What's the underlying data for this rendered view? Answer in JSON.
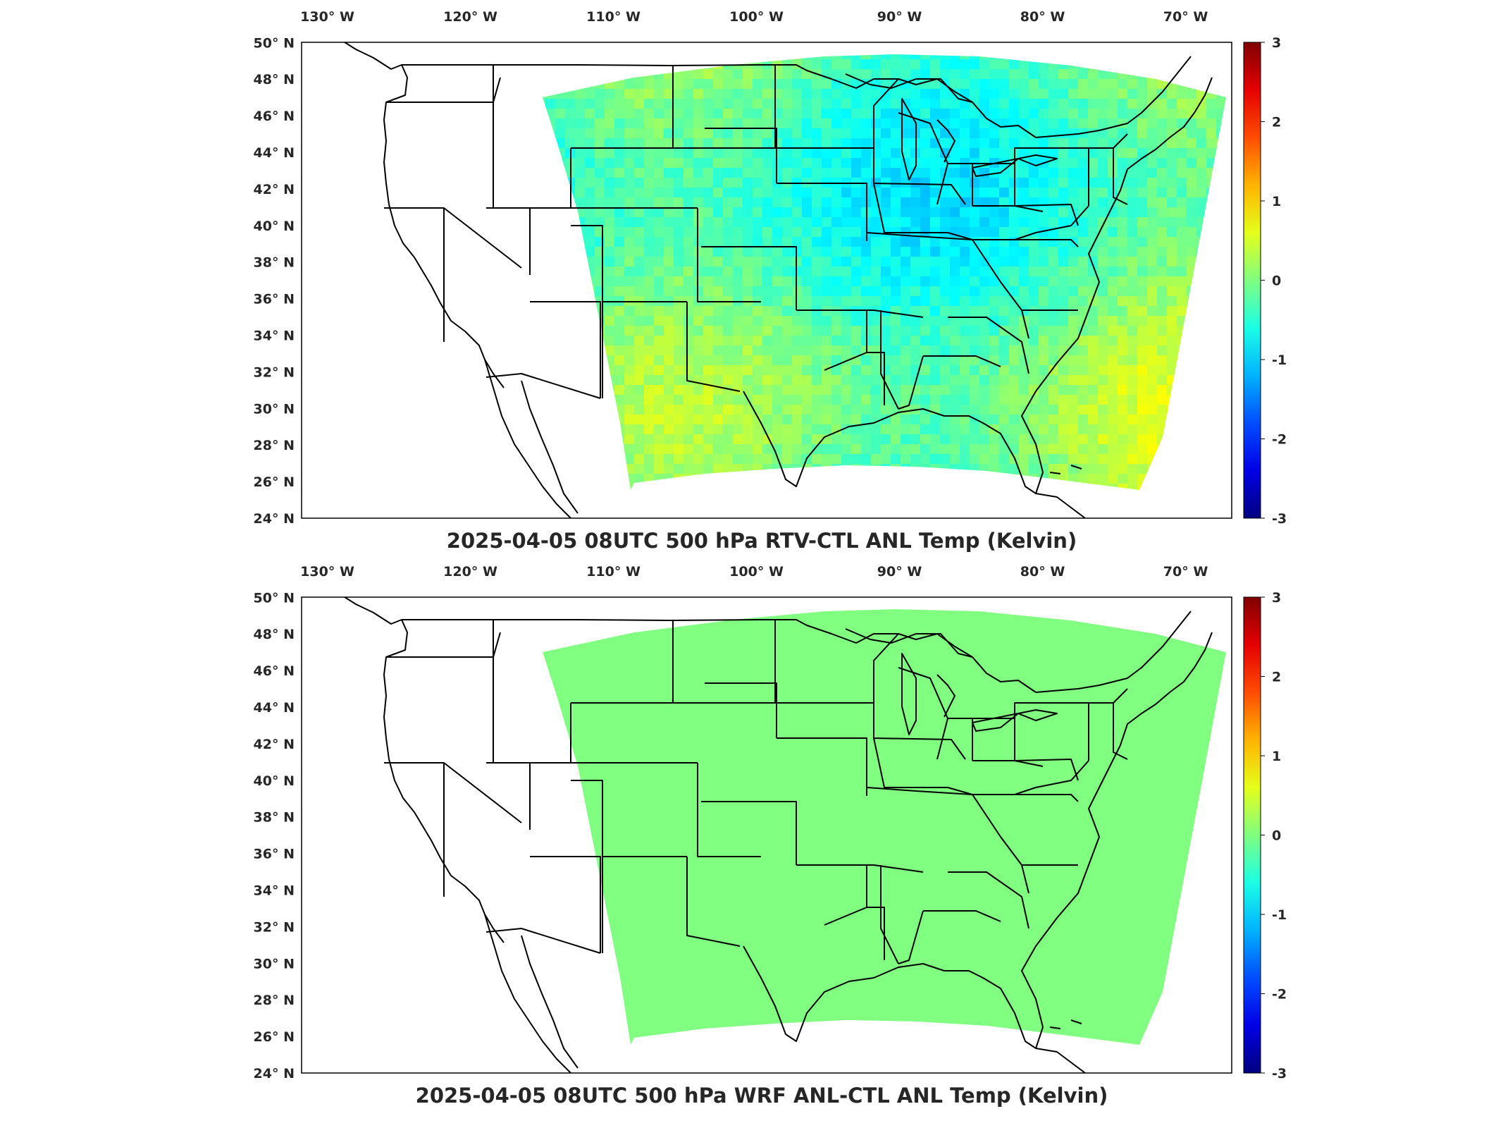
{
  "figure": {
    "panels": [
      {
        "title": "2025-04-05 08UTC 500 hPa RTV-CTL ANL Temp (Kelvin)",
        "field": "noisy-difference",
        "colorbar": {
          "ticks": [
            "3",
            "2",
            "1",
            "0",
            "-1",
            "-2",
            "-3"
          ],
          "min": -3,
          "max": 3,
          "colormap": "jet"
        }
      },
      {
        "title": "2025-04-05 08UTC 500 hPa WRF ANL-CTL ANL Temp (Kelvin)",
        "field": "uniform-zero",
        "colorbar": {
          "ticks": [
            "3",
            "2",
            "1",
            "0",
            "-1",
            "-2",
            "-3"
          ],
          "min": -3,
          "max": 3,
          "colormap": "jet"
        }
      }
    ],
    "lon_labels": [
      "130",
      "120",
      "110",
      "100",
      "90",
      "80",
      "70"
    ],
    "lon_suffix": "W",
    "lat_labels": [
      "50",
      "48",
      "46",
      "44",
      "42",
      "40",
      "38",
      "36",
      "34",
      "32",
      "30",
      "28",
      "26",
      "24"
    ],
    "lat_suffix": "N",
    "degree_symbol": "°"
  },
  "colors": {
    "zero_green": "#80ff80",
    "border": "#000000"
  }
}
